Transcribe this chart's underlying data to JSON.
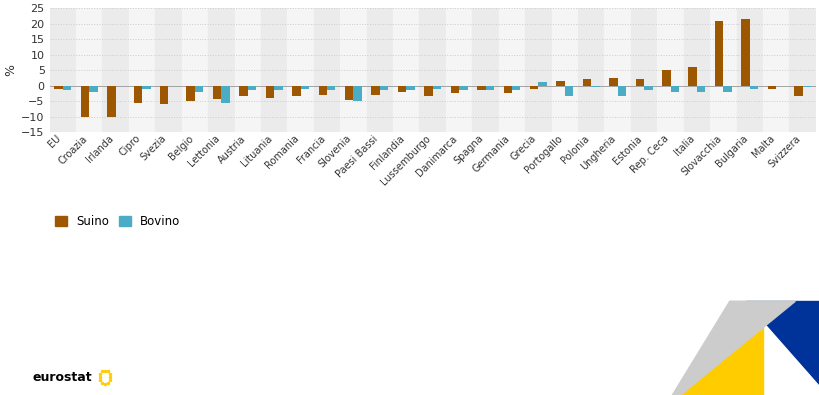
{
  "categories": [
    "EU",
    "Croazia",
    "Irlanda",
    "Cipro",
    "Svezia",
    "Belgio",
    "Lettonia",
    "Austria",
    "Lituania",
    "Romania",
    "Francia",
    "Slovenia",
    "Paesi Bassi",
    "Finlandia",
    "Lussemburgo",
    "Danimarca",
    "Spagna",
    "Germania",
    "Grecia",
    "Portogallo",
    "Polonia",
    "Ungheria",
    "Estonia",
    "Rep. Ceca",
    "Italia",
    "Slovacchia",
    "Bulgaria",
    "Malta",
    "Svizzera"
  ],
  "suino": [
    -1.0,
    -10.0,
    -10.2,
    -5.5,
    -5.8,
    -5.0,
    -4.5,
    -3.5,
    -4.0,
    -3.5,
    -3.0,
    -4.8,
    -3.0,
    -2.0,
    -3.3,
    -2.5,
    -1.5,
    -2.5,
    -1.0,
    1.5,
    2.0,
    2.5,
    2.2,
    5.0,
    6.0,
    21.0,
    21.5,
    -1.0,
    -3.5
  ],
  "bovino": [
    -1.5,
    -2.0,
    null,
    -1.0,
    null,
    -2.0,
    -5.5,
    -1.5,
    -1.5,
    -1.0,
    -1.5,
    -5.0,
    -1.5,
    -1.5,
    -1.0,
    -1.5,
    -1.5,
    -1.5,
    1.0,
    -3.5,
    -0.5,
    -3.5,
    -1.5,
    -2.0,
    -2.0,
    -2.0,
    -1.0,
    null,
    -0.5
  ],
  "suino_color": "#9C5700",
  "bovino_color": "#4BACC6",
  "fig_bg_color": "#FFFFFF",
  "plot_bg_color": "#F2F2F2",
  "stripe_odd": "#EBEBEB",
  "stripe_even": "#F5F5F5",
  "ylabel": "%",
  "ylim": [
    -15,
    25
  ],
  "yticks": [
    -15,
    -10,
    -5,
    0,
    5,
    10,
    15,
    20,
    25
  ],
  "legend_suino": "Suino",
  "legend_bovino": "Bovino",
  "bar_width": 0.32,
  "grid_color": "#CCCCCC",
  "grid_linestyle": "dotted"
}
